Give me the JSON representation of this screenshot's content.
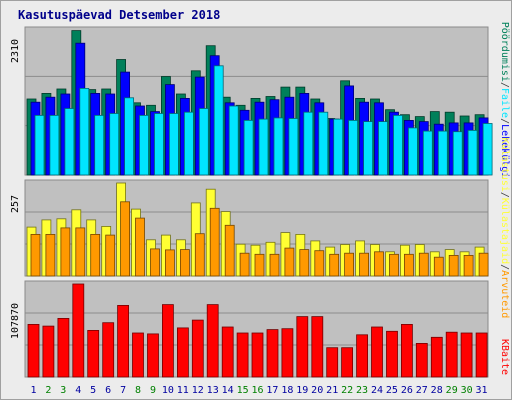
{
  "title": "Kasutuspäevad Detsember 2018",
  "colors": {
    "background": "#ececec",
    "plot_bg": "#c0c0c0",
    "visits": "#00805a",
    "pages": "#0000ff",
    "hits": "#00e5ff",
    "files": "#ffff33",
    "visitors": "#ff9900",
    "kb": "#ff0000",
    "weekday_label": "#0000a0",
    "weekend_label": "#008000"
  },
  "side_labels": {
    "top": [
      "Pöördumisi",
      "Faile",
      "Lehekülgi"
    ],
    "middle": [
      "Külastusi",
      "Külastajaid",
      "Arvuteid"
    ],
    "bottom": [
      "KBaite"
    ]
  },
  "chart_data": [
    {
      "type": "bar",
      "name": "top-panel",
      "ymax_label": "2310",
      "ylim": [
        0,
        2310
      ],
      "categories": [
        "1",
        "2",
        "3",
        "4",
        "5",
        "6",
        "7",
        "8",
        "9",
        "10",
        "11",
        "12",
        "13",
        "14",
        "15",
        "16",
        "17",
        "18",
        "19",
        "20",
        "21",
        "22",
        "23",
        "24",
        "25",
        "26",
        "27",
        "28",
        "29",
        "30",
        "31"
      ],
      "weekend": [
        false,
        true,
        true,
        false,
        false,
        false,
        false,
        true,
        true,
        false,
        false,
        false,
        false,
        false,
        true,
        true,
        false,
        false,
        false,
        false,
        false,
        true,
        true,
        false,
        false,
        false,
        false,
        false,
        true,
        true,
        false
      ],
      "series": [
        {
          "key": "visits",
          "values": [
            1210,
            1300,
            1370,
            2300,
            1360,
            1370,
            1840,
            1150,
            1110,
            1570,
            1290,
            1660,
            2060,
            1240,
            1110,
            1220,
            1250,
            1400,
            1400,
            1210,
            900,
            1500,
            1220,
            1210,
            1040,
            960,
            930,
            1010,
            1000,
            940,
            960
          ]
        },
        {
          "key": "pages",
          "values": [
            1160,
            1240,
            1290,
            2100,
            1300,
            1290,
            1640,
            1100,
            1010,
            1440,
            1220,
            1560,
            1900,
            1150,
            1030,
            1160,
            1200,
            1240,
            1300,
            1150,
            890,
            1420,
            1160,
            1150,
            1000,
            870,
            850,
            810,
            830,
            830,
            910
          ]
        },
        {
          "key": "hits",
          "values": [
            950,
            950,
            1060,
            1380,
            950,
            980,
            1230,
            950,
            980,
            980,
            1000,
            1060,
            1740,
            1100,
            870,
            890,
            910,
            900,
            1000,
            1000,
            890,
            870,
            850,
            850,
            950,
            750,
            700,
            700,
            690,
            710,
            820
          ]
        }
      ]
    },
    {
      "type": "bar",
      "name": "middle-panel",
      "ymax_label": "257",
      "ylim": [
        0,
        257
      ],
      "categories": [
        "1",
        "2",
        "3",
        "4",
        "5",
        "6",
        "7",
        "8",
        "9",
        "10",
        "11",
        "12",
        "13",
        "14",
        "15",
        "16",
        "17",
        "18",
        "19",
        "20",
        "21",
        "22",
        "23",
        "24",
        "25",
        "26",
        "27",
        "28",
        "29",
        "30",
        "31"
      ],
      "series": [
        {
          "key": "files",
          "values": [
            135,
            155,
            158,
            183,
            155,
            137,
            257,
            185,
            100,
            113,
            100,
            202,
            240,
            178,
            88,
            85,
            93,
            120,
            115,
            97,
            80,
            87,
            97,
            87,
            67,
            85,
            87,
            67,
            73,
            67,
            80
          ]
        },
        {
          "key": "visitors",
          "values": [
            115,
            115,
            133,
            133,
            115,
            113,
            205,
            160,
            75,
            72,
            73,
            117,
            187,
            140,
            63,
            60,
            60,
            77,
            73,
            70,
            60,
            63,
            63,
            67,
            60,
            60,
            63,
            52,
            57,
            57,
            63
          ]
        }
      ]
    },
    {
      "type": "bar",
      "name": "bottom-panel",
      "ymax_label": "107870",
      "ylim": [
        0,
        107870
      ],
      "categories": [
        "1",
        "2",
        "3",
        "4",
        "5",
        "6",
        "7",
        "8",
        "9",
        "10",
        "11",
        "12",
        "13",
        "14",
        "15",
        "16",
        "17",
        "18",
        "19",
        "20",
        "21",
        "22",
        "23",
        "24",
        "25",
        "26",
        "27",
        "28",
        "29",
        "30",
        "31"
      ],
      "series": [
        {
          "key": "kb",
          "values": [
            61000,
            59000,
            68000,
            107870,
            54000,
            63000,
            83000,
            51000,
            50000,
            84000,
            57000,
            66000,
            84000,
            58000,
            51000,
            51000,
            55000,
            56000,
            70000,
            70000,
            34000,
            34000,
            49000,
            58000,
            53000,
            61000,
            39000,
            46000,
            52000,
            51000,
            51000
          ]
        }
      ]
    }
  ]
}
